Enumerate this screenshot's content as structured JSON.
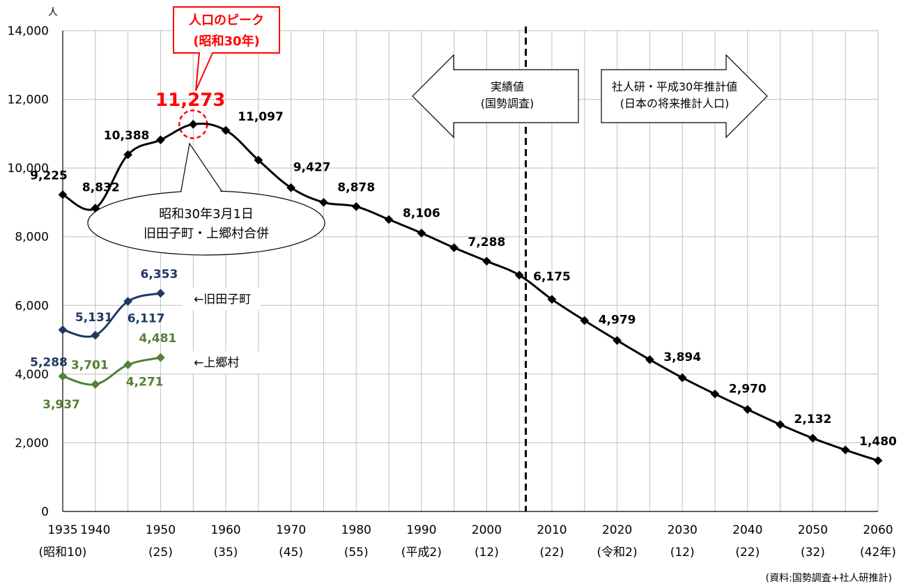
{
  "chart_data": {
    "type": "line",
    "y_unit": "人",
    "ylim": [
      0,
      14000
    ],
    "y_ticks": [
      0,
      2000,
      4000,
      6000,
      8000,
      10000,
      12000,
      14000
    ],
    "y_tick_labels": [
      "0",
      "2,000",
      "4,000",
      "6,000",
      "8,000",
      "10,000",
      "12,000",
      "14,000"
    ],
    "xlim": [
      1935,
      2060
    ],
    "grid": true,
    "x_ticks": [
      {
        "x": 1935,
        "year": "1935",
        "era": "(昭和10)"
      },
      {
        "x": 1940,
        "year": "1940",
        "era": ""
      },
      {
        "x": 1950,
        "year": "1950",
        "era": "(25)"
      },
      {
        "x": 1960,
        "year": "1960",
        "era": "(35)"
      },
      {
        "x": 1970,
        "year": "1970",
        "era": "(45)"
      },
      {
        "x": 1980,
        "year": "1980",
        "era": "(55)"
      },
      {
        "x": 1990,
        "year": "1990",
        "era": "(平成2)"
      },
      {
        "x": 2000,
        "year": "2000",
        "era": "(12)"
      },
      {
        "x": 2010,
        "year": "2010",
        "era": "(22)"
      },
      {
        "x": 2020,
        "year": "2020",
        "era": "(令和2)"
      },
      {
        "x": 2030,
        "year": "2030",
        "era": "(12)"
      },
      {
        "x": 2040,
        "year": "2040",
        "era": "(22)"
      },
      {
        "x": 2050,
        "year": "2050",
        "era": "(32)"
      },
      {
        "x": 2060,
        "year": "2060",
        "era": "(42年)"
      }
    ],
    "series": [
      {
        "color": "#000000",
        "x": [
          1935,
          1940,
          1945,
          1950,
          1955,
          1960,
          1965,
          1970,
          1975,
          1980,
          1985,
          1990,
          1995,
          2000,
          2005,
          2010,
          2015,
          2020,
          2025,
          2030,
          2035,
          2040,
          2045,
          2050,
          2055,
          2060
        ],
        "values": [
          9225,
          8832,
          10388,
          10820,
          11273,
          11097,
          10230,
          9427,
          9000,
          8878,
          8500,
          8106,
          7680,
          7288,
          6880,
          6175,
          5560,
          4979,
          4420,
          3894,
          3420,
          2970,
          2530,
          2132,
          1790,
          1480
        ]
      },
      {
        "name": "←旧田子町",
        "color": "#1f3864",
        "x": [
          1935,
          1940,
          1945,
          1950
        ],
        "values": [
          5288,
          5131,
          6117,
          6353
        ]
      },
      {
        "name": "←上郷村",
        "color": "#538135",
        "x": [
          1935,
          1940,
          1945,
          1950
        ],
        "values": [
          3937,
          3701,
          4271,
          4481
        ]
      }
    ],
    "data_labels": [
      {
        "series": 0,
        "x": 1935,
        "text": "9,225"
      },
      {
        "series": 0,
        "x": 1940,
        "text": "8,832"
      },
      {
        "series": 0,
        "x": 1945,
        "text": "10,388"
      },
      {
        "series": 0,
        "x": 1960,
        "text": "11,097"
      },
      {
        "series": 0,
        "x": 1970,
        "text": "9,427"
      },
      {
        "series": 0,
        "x": 1980,
        "text": "8,878"
      },
      {
        "series": 0,
        "x": 1990,
        "text": "8,106"
      },
      {
        "series": 0,
        "x": 2000,
        "text": "7,288"
      },
      {
        "series": 0,
        "x": 2010,
        "text": "6,175"
      },
      {
        "series": 0,
        "x": 2020,
        "text": "4,979"
      },
      {
        "series": 0,
        "x": 2030,
        "text": "3,894"
      },
      {
        "series": 0,
        "x": 2040,
        "text": "2,970"
      },
      {
        "series": 0,
        "x": 2050,
        "text": "2,132"
      },
      {
        "series": 0,
        "x": 2060,
        "text": "1,480"
      },
      {
        "series": 1,
        "x": 1935,
        "text": "5,288"
      },
      {
        "series": 1,
        "x": 1940,
        "text": "5,131"
      },
      {
        "series": 1,
        "x": 1945,
        "text": "6,117"
      },
      {
        "series": 1,
        "x": 1950,
        "text": "6,353"
      },
      {
        "series": 2,
        "x": 1935,
        "text": "3,937"
      },
      {
        "series": 2,
        "x": 1940,
        "text": "3,701"
      },
      {
        "series": 2,
        "x": 1945,
        "text": "4,271"
      },
      {
        "series": 2,
        "x": 1950,
        "text": "4,481"
      }
    ],
    "peak": {
      "x": 1955,
      "value": 11273,
      "label": "11,273"
    },
    "peak_callout": {
      "line1": "人口のピーク",
      "line2": "(昭和30年)"
    },
    "merger_note": {
      "line1": "昭和30年3月1日",
      "line2": "旧田子町・上郷村合併"
    },
    "divider_x": 2006,
    "actual_arrow": {
      "line1": "実績値",
      "line2": "(国勢調査)"
    },
    "projection_arrow": {
      "line1": "社人研・平成30年推計値",
      "line2": "(日本の将来推計人口)"
    },
    "source": "(資料:国勢調査+社人研推計)",
    "colors": {
      "main": "#000000",
      "tago": "#1f3864",
      "kamigo": "#538135",
      "peak": "#ff0000",
      "grid": "#bfbfbf"
    }
  }
}
